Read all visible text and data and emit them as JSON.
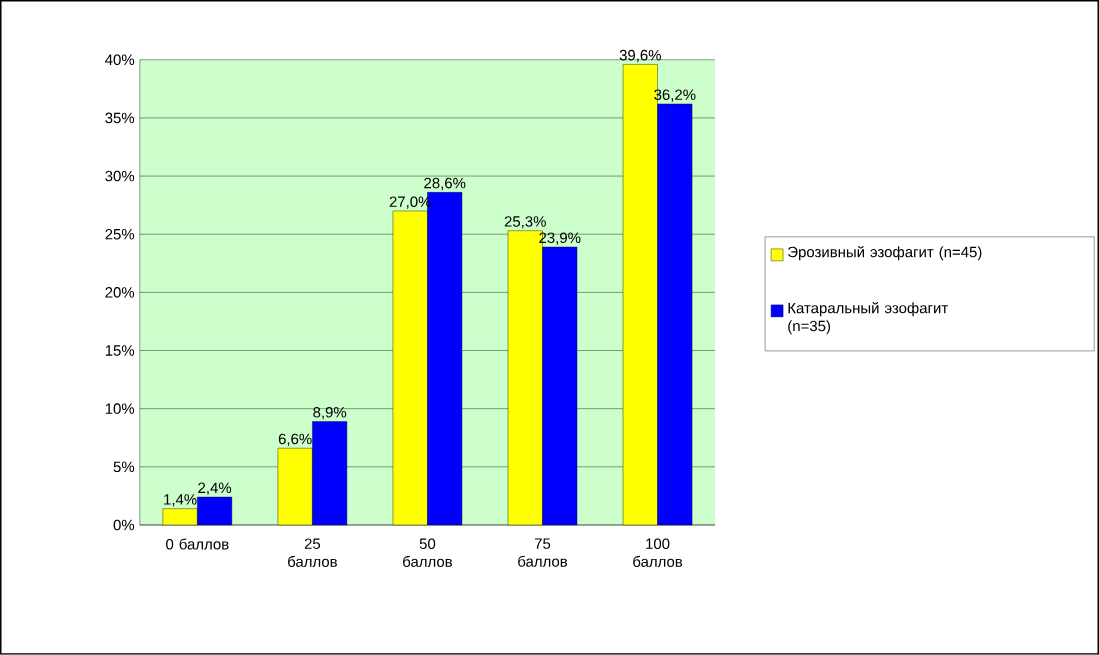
{
  "chart_data": {
    "type": "bar",
    "categories": [
      "0 баллов",
      "25 баллов",
      "50 баллов",
      "75 баллов",
      "100 баллов"
    ],
    "series": [
      {
        "name": "Эрозивный эзофагит (n=45)",
        "color": "#ffff00",
        "values": [
          1.4,
          6.6,
          27.0,
          25.3,
          39.6
        ],
        "value_labels": [
          "1,4%",
          "6,6%",
          "27,0%",
          "25,3%",
          "39,6%"
        ]
      },
      {
        "name": "Катаральный эзофагит (n=35)",
        "color": "#0000ff",
        "values": [
          2.4,
          8.9,
          28.6,
          23.9,
          36.2
        ],
        "value_labels": [
          "2,4%",
          "8,9%",
          "28,6%",
          "23,9%",
          "36,2%"
        ]
      }
    ],
    "ylim": [
      0,
      40
    ],
    "yticks": [
      {
        "value": 0,
        "label": "0%"
      },
      {
        "value": 5,
        "label": "5%"
      },
      {
        "value": 10,
        "label": "10%"
      },
      {
        "value": 15,
        "label": "15%"
      },
      {
        "value": 20,
        "label": "20%"
      },
      {
        "value": 25,
        "label": "25%"
      },
      {
        "value": 30,
        "label": "30%"
      },
      {
        "value": 35,
        "label": "35%"
      },
      {
        "value": 40,
        "label": "40%"
      }
    ],
    "grid": "y",
    "legend": "right"
  }
}
